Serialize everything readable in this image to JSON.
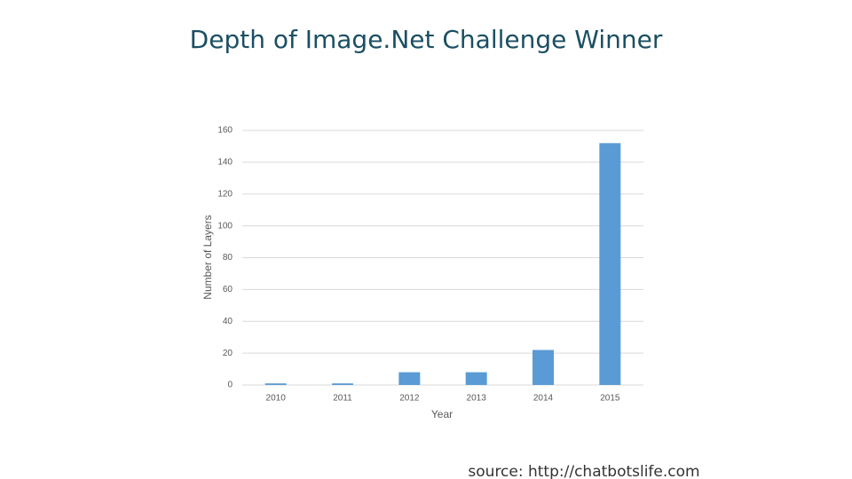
{
  "chart_data": {
    "type": "bar",
    "title": "Depth of Image.Net Challenge Winner",
    "x_label": "Year",
    "y_label": "Number of Layers",
    "categories": [
      "2010",
      "2011",
      "2012",
      "2013",
      "2014",
      "2015"
    ],
    "values": [
      1,
      1,
      8,
      8,
      22,
      152
    ],
    "color": "#5b9bd5",
    "ylim": [
      0,
      160
    ],
    "yticks": [
      0,
      20,
      40,
      60,
      80,
      100,
      120,
      140,
      160
    ],
    "grid": true,
    "source": "source: http://chatbotslife.com"
  }
}
